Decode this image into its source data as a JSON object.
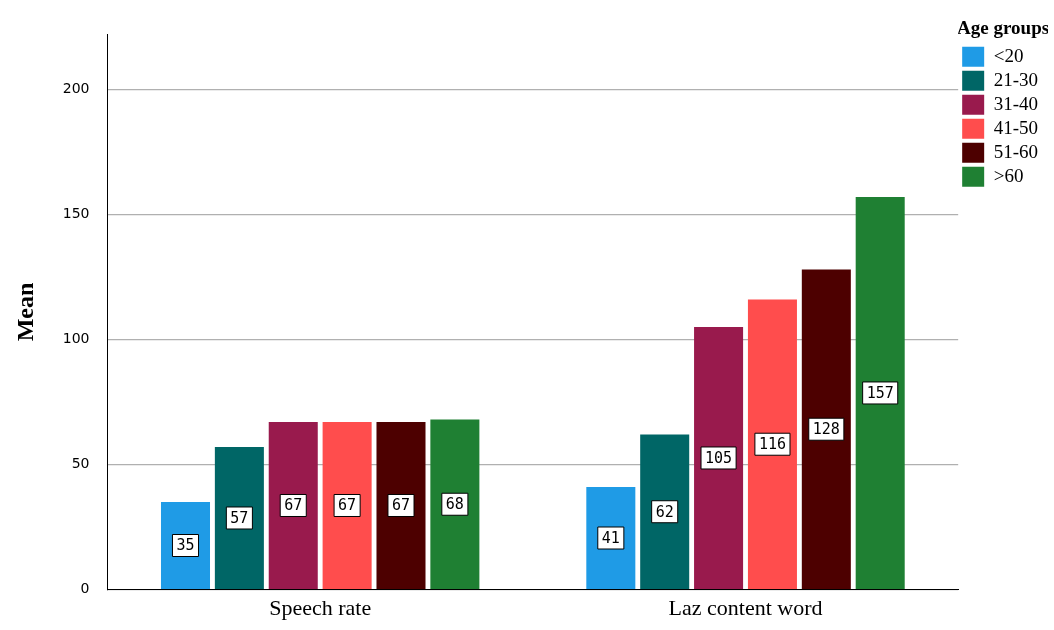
{
  "chart_data": {
    "type": "bar",
    "ylabel": "Mean",
    "legend_title": "Age groups",
    "categories": [
      "Speech rate",
      "Laz content word"
    ],
    "series": [
      {
        "name": "<20",
        "color": "#1f9be6",
        "values": [
          35,
          41
        ]
      },
      {
        "name": "21-30",
        "color": "#006666",
        "values": [
          57,
          62
        ]
      },
      {
        "name": "31-40",
        "color": "#991a4d",
        "values": [
          67,
          105
        ]
      },
      {
        "name": "41-50",
        "color": "#ff4d4d",
        "values": [
          67,
          116
        ]
      },
      {
        "name": "51-60",
        "color": "#4d0000",
        "values": [
          67,
          128
        ]
      },
      {
        "name": ">60",
        "color": "#1f8033",
        "values": [
          68,
          157
        ]
      }
    ],
    "ylim": [
      0,
      222
    ],
    "yticks": [
      0,
      50,
      100,
      150,
      200
    ],
    "grid": "y",
    "legend": "top right",
    "data_labels": true
  }
}
